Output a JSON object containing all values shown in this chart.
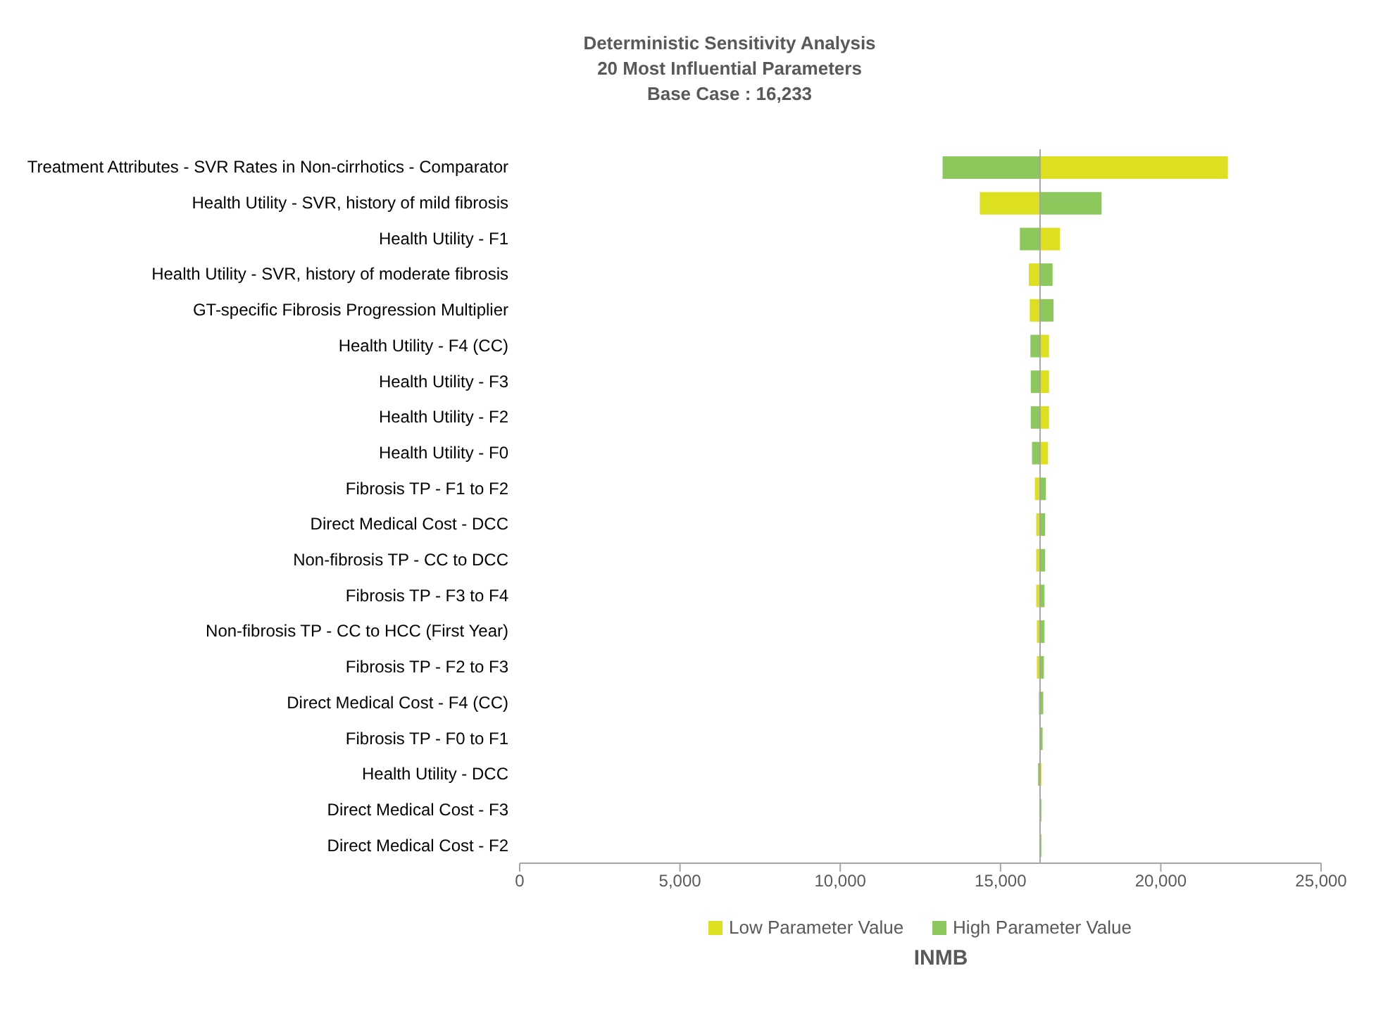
{
  "chart_data": {
    "type": "bar",
    "orientation": "horizontal",
    "title": "Deterministic Sensitivity Analysis",
    "subtitle": "20 Most Influential Parameters",
    "xlabel": "INMB",
    "annotations": [
      "Base Case : 16,233"
    ],
    "categories": [
      "Treatment Attributes - SVR Rates in Non-cirrhotics - Comparator",
      "Health Utility - SVR, history of mild fibrosis",
      "Health Utility - F1",
      "Health Utility - SVR, history of moderate fibrosis",
      "GT-specific Fibrosis Progression Multiplier",
      "Health Utility - F4 (CC)",
      "Health Utility - F3",
      "Health Utility - F2",
      "Health Utility - F0",
      "Fibrosis TP - F1 to F2",
      "Direct Medical Cost - DCC",
      "Non-fibrosis TP - CC to DCC",
      "Fibrosis TP - F3 to F4",
      "Non-fibrosis TP - CC to HCC (First Year)",
      "Fibrosis TP - F2 to F3",
      "Direct Medical Cost - F4 (CC)",
      "Fibrosis TP - F0 to F1",
      "Health Utility - DCC",
      "Direct Medical Cost - F3",
      "Direct Medical Cost - F2"
    ],
    "series": [
      {
        "name": "Low Parameter Value",
        "color": "#dde020",
        "base": [
          16233,
          16233,
          16233,
          16233,
          16233,
          16233,
          16233,
          16233,
          16233,
          16233,
          16233,
          16233,
          16233,
          16233,
          16233,
          16233,
          16233,
          16233,
          null,
          null
        ],
        "values": [
          5860,
          -1880,
          620,
          -350,
          -320,
          280,
          280,
          280,
          250,
          -160,
          -120,
          -120,
          -120,
          -100,
          -100,
          -40,
          -20,
          40,
          null,
          null
        ]
      },
      {
        "name": "High Parameter Value",
        "color": "#8dc85c",
        "base": [
          16233,
          16233,
          16233,
          16233,
          16233,
          16233,
          16233,
          16233,
          16233,
          16233,
          16233,
          16233,
          16233,
          16233,
          16233,
          16233,
          16233,
          16233,
          16233,
          16233
        ],
        "values": [
          -3040,
          1920,
          -630,
          390,
          420,
          -300,
          -290,
          -290,
          -250,
          180,
          160,
          160,
          140,
          140,
          120,
          100,
          80,
          -60,
          40,
          40
        ]
      }
    ],
    "xlim": [
      0,
      25000
    ],
    "xticks": [
      {
        "value": 0,
        "label": "0"
      },
      {
        "value": 5000,
        "label": "5,000"
      },
      {
        "value": 10000,
        "label": "10,000"
      },
      {
        "value": 15000,
        "label": "15,000"
      },
      {
        "value": 20000,
        "label": "20,000"
      },
      {
        "value": 25000,
        "label": "25,000"
      }
    ],
    "ref_lines": [
      {
        "axis": "x",
        "value": 16233,
        "color": "#a6a6a6"
      }
    ],
    "legend": "bottom"
  }
}
